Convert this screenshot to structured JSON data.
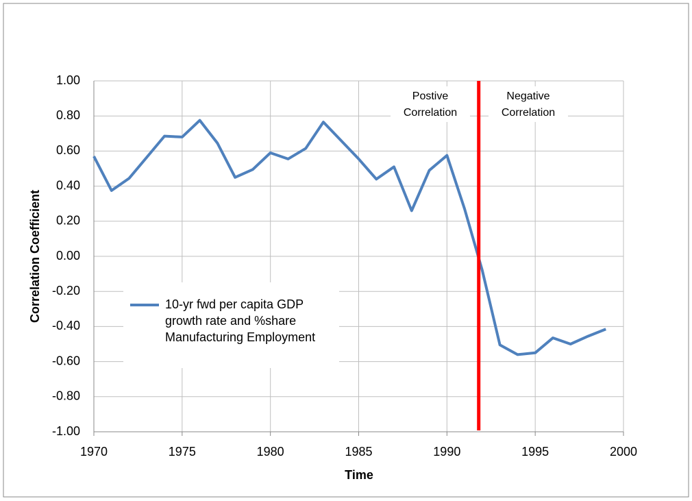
{
  "chart_data": {
    "type": "line",
    "y_label": "Correlation Coefficient",
    "x_label": "Time",
    "x": [
      1970,
      1971,
      1972,
      1973,
      1974,
      1975,
      1976,
      1977,
      1978,
      1979,
      1980,
      1981,
      1982,
      1983,
      1984,
      1985,
      1986,
      1987,
      1988,
      1989,
      1990,
      1991,
      1992,
      1993,
      1994,
      1995,
      1996,
      1997,
      1998,
      1999
    ],
    "series": [
      {
        "name": "10-yr fwd per capita GDP growth rate and %share Manufacturing Employment",
        "color": "#4f81bd",
        "values": [
          0.57,
          0.375,
          0.445,
          0.565,
          0.685,
          0.68,
          0.775,
          0.645,
          0.45,
          0.495,
          0.59,
          0.555,
          0.615,
          0.765,
          0.66,
          0.555,
          0.44,
          0.51,
          0.26,
          0.49,
          0.575,
          0.27,
          -0.08,
          -0.505,
          -0.56,
          -0.55,
          -0.465,
          -0.5,
          -0.455,
          -0.415
        ]
      }
    ],
    "xlim": [
      1970,
      2000
    ],
    "xticks": [
      1970,
      1975,
      1980,
      1985,
      1990,
      1995,
      2000
    ],
    "ylim": [
      -1,
      1
    ],
    "yticks": [
      {
        "value": 1,
        "label": "1.00"
      },
      {
        "value": 0.8,
        "label": "0.80"
      },
      {
        "value": 0.6,
        "label": "0.60"
      },
      {
        "value": 0.4,
        "label": "0.40"
      },
      {
        "value": 0.2,
        "label": "0.20"
      },
      {
        "value": 0,
        "label": "0.00"
      },
      {
        "value": -0.2,
        "label": "-0.20"
      },
      {
        "value": -0.4,
        "label": "-0.40"
      },
      {
        "value": -0.6,
        "label": "-0.60"
      },
      {
        "value": -0.8,
        "label": "-0.80"
      },
      {
        "value": -1,
        "label": "-1.00"
      }
    ],
    "grid": true,
    "divider": {
      "x": 1991.8,
      "color": "#ff0000"
    },
    "annotations": [
      {
        "lines": [
          "Postive",
          "Correlation"
        ]
      },
      {
        "lines": [
          "Negative",
          "Correlation"
        ]
      }
    ]
  }
}
